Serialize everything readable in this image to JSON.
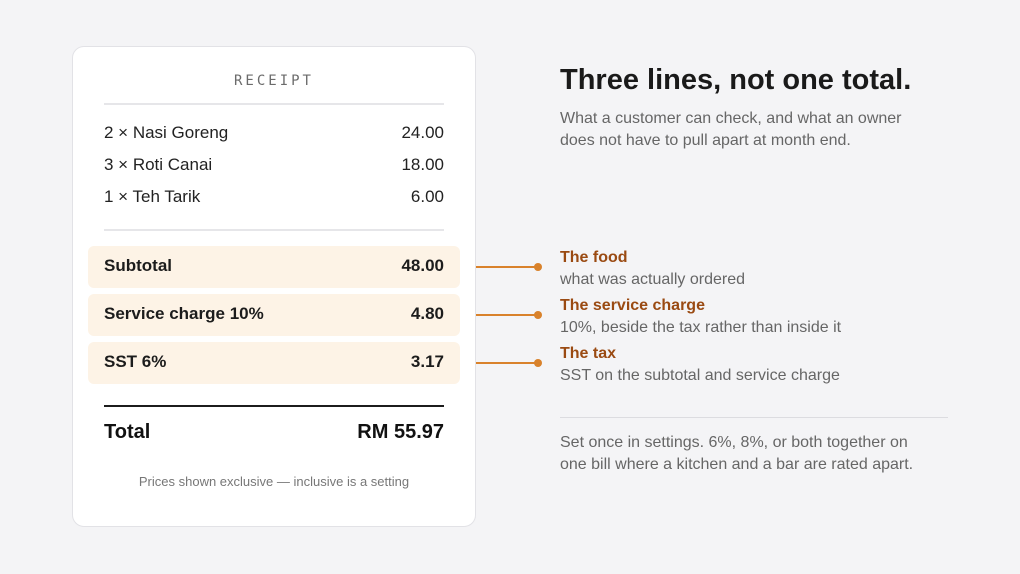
{
  "receipt": {
    "title": "RECEIPT",
    "items": [
      {
        "label": "2 × Nasi Goreng",
        "amount": "24.00"
      },
      {
        "label": "3 × Roti Canai",
        "amount": "18.00"
      },
      {
        "label": "1 × Teh Tarik",
        "amount": "6.00"
      }
    ],
    "subtotal": {
      "label": "Subtotal",
      "amount": "48.00"
    },
    "service": {
      "label": "Service charge 10%",
      "amount": "4.80"
    },
    "sst": {
      "label": "SST 6%",
      "amount": "3.17"
    },
    "total": {
      "label": "Total",
      "amount": "RM 55.97"
    },
    "footnote": "Prices shown exclusive — inclusive is a setting"
  },
  "panel": {
    "heading": "Three lines, not one total.",
    "intro": "What a customer can check, and what an owner does not have to pull apart at month end.",
    "callouts": [
      {
        "title": "The food",
        "desc": "what was actually ordered"
      },
      {
        "title": "The service charge",
        "desc": "10%, beside the tax rather than inside it"
      },
      {
        "title": "The tax",
        "desc": "SST on the subtotal and service charge"
      }
    ],
    "note": "Set once in settings. 6%, 8%, or both together on one bill where a kitchen and a bar are rated apart."
  },
  "colors": {
    "accent": "#d9822b",
    "accent_text": "#9a4a12",
    "highlight_band": "#fdf3e6",
    "background": "#f4f4f6"
  }
}
